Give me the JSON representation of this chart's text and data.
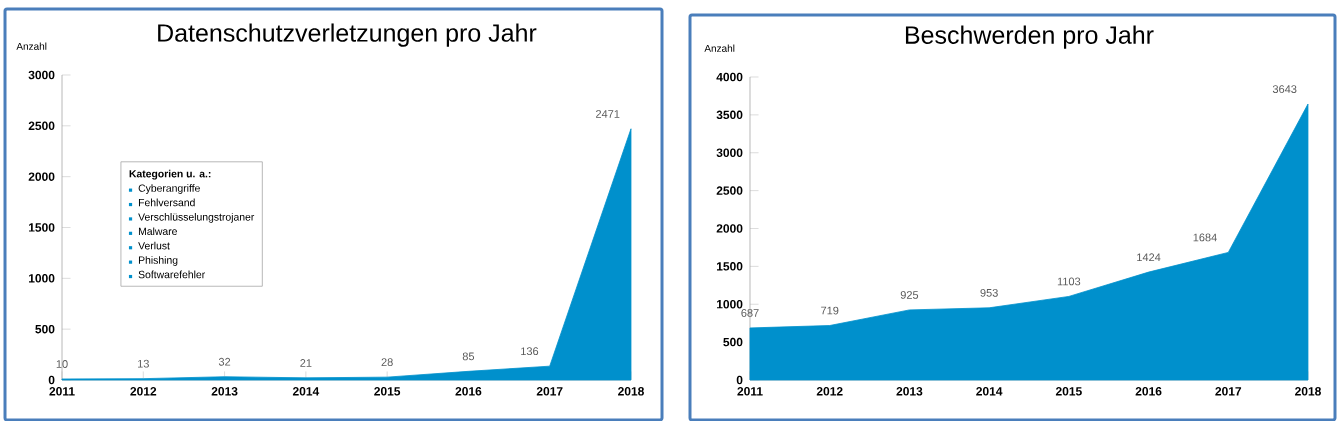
{
  "chart_data": [
    {
      "type": "area",
      "title": "Datenschutzverletzungen pro Jahr",
      "ylabel": "Anzahl",
      "categories": [
        "2011",
        "2012",
        "2013",
        "2014",
        "2015",
        "2016",
        "2017",
        "2018"
      ],
      "values": [
        10,
        13,
        32,
        21,
        28,
        85,
        136,
        2471
      ],
      "color": "#0090cc",
      "ylim": [
        0,
        3000
      ],
      "yticks": [
        0,
        500,
        1000,
        1500,
        2000,
        2500,
        3000
      ],
      "data_labels": true,
      "annotations": [
        "Kategorien u. a.:",
        "Cyberangriffe",
        "Fehlversand",
        "Verschlüsselungstrojaner",
        "Malware",
        "Verlust",
        "Phishing",
        "Softwarefehler"
      ]
    },
    {
      "type": "area",
      "title": "Beschwerden pro Jahr",
      "ylabel": "Anzahl",
      "categories": [
        "2011",
        "2012",
        "2013",
        "2014",
        "2015",
        "2016",
        "2017",
        "2018"
      ],
      "values": [
        687,
        719,
        925,
        953,
        1103,
        1424,
        1684,
        3643
      ],
      "color": "#0090cc",
      "ylim": [
        0,
        4000
      ],
      "yticks": [
        0,
        500,
        1000,
        1500,
        2000,
        2500,
        3000,
        3500,
        4000
      ],
      "data_labels": true
    }
  ]
}
